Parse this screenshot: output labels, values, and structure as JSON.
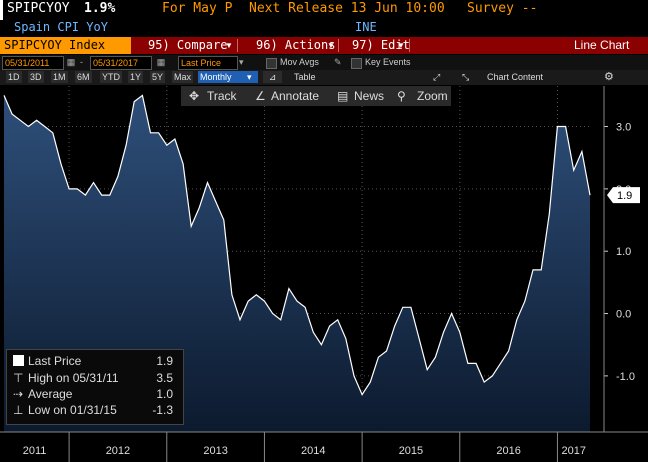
{
  "header": {
    "ticker": "SPIPCYOY",
    "last_value": "1.9%",
    "for_label": "For May P",
    "next_release": "Next Release 13 Jun 10:00",
    "survey": "Survey --",
    "name": "Spain CPI YoY",
    "source": "INE"
  },
  "command_bar": {
    "security": "SPIPCYOY Index",
    "compare": "95) Compare",
    "actions": "96) Actions",
    "edit": "97) Edit",
    "view": "Line Chart"
  },
  "toolbar": {
    "start_date": "05/31/2011",
    "end_date": "05/31/2017",
    "field": "Last Price",
    "mov_avgs": "Mov Avgs",
    "key_events": "Key Events",
    "chart_content": "Chart Content",
    "periods": [
      "1D",
      "3D",
      "1M",
      "6M",
      "YTD",
      "1Y",
      "5Y",
      "Max"
    ],
    "frequency": "Monthly",
    "table": "Table"
  },
  "tools": {
    "track": "Track",
    "annotate": "Annotate",
    "news": "News",
    "zoom": "Zoom"
  },
  "legend": {
    "last_label": "Last Price",
    "last_value": "1.9",
    "high_label": "High on 05/31/11",
    "high_value": "3.5",
    "avg_label": "Average",
    "avg_value": "1.0",
    "low_label": "Low on 01/31/15",
    "low_value": "-1.3"
  },
  "colors": {
    "line": "#ffffff",
    "fill_top": "#2e4f7a",
    "fill_bottom": "#0c1a2e",
    "header_value": "#ffd700",
    "header_label": "#ff9900",
    "command_bar": "#8b0000",
    "security_tab": "#ff9900",
    "frequency_active": "#1f5fb4"
  },
  "chart_data": {
    "type": "area",
    "title": "",
    "xlabel": "",
    "ylabel": "",
    "ylim": [
      -1.9,
      3.65
    ],
    "yticks": [
      3.0,
      2.0,
      1.0,
      0.0,
      -1.0
    ],
    "last_value_label": "1.9",
    "x_labels": [
      "2011",
      "2012",
      "2013",
      "2014",
      "2015",
      "2016",
      "2017"
    ],
    "x": [
      "2011-05",
      "2011-06",
      "2011-07",
      "2011-08",
      "2011-09",
      "2011-10",
      "2011-11",
      "2011-12",
      "2012-01",
      "2012-02",
      "2012-03",
      "2012-04",
      "2012-05",
      "2012-06",
      "2012-07",
      "2012-08",
      "2012-09",
      "2012-10",
      "2012-11",
      "2012-12",
      "2013-01",
      "2013-02",
      "2013-03",
      "2013-04",
      "2013-05",
      "2013-06",
      "2013-07",
      "2013-08",
      "2013-09",
      "2013-10",
      "2013-11",
      "2013-12",
      "2014-01",
      "2014-02",
      "2014-03",
      "2014-04",
      "2014-05",
      "2014-06",
      "2014-07",
      "2014-08",
      "2014-09",
      "2014-10",
      "2014-11",
      "2014-12",
      "2015-01",
      "2015-02",
      "2015-03",
      "2015-04",
      "2015-05",
      "2015-06",
      "2015-07",
      "2015-08",
      "2015-09",
      "2015-10",
      "2015-11",
      "2015-12",
      "2016-01",
      "2016-02",
      "2016-03",
      "2016-04",
      "2016-05",
      "2016-06",
      "2016-07",
      "2016-08",
      "2016-09",
      "2016-10",
      "2016-11",
      "2016-12",
      "2017-01",
      "2017-02",
      "2017-03",
      "2017-04",
      "2017-05"
    ],
    "series": [
      {
        "values": [
          3.5,
          3.2,
          3.1,
          3.0,
          3.1,
          3.0,
          2.9,
          2.4,
          2.0,
          2.0,
          1.9,
          2.1,
          1.9,
          1.9,
          2.2,
          2.7,
          3.4,
          3.5,
          2.9,
          2.9,
          2.7,
          2.8,
          2.4,
          1.4,
          1.7,
          2.1,
          1.8,
          1.5,
          0.3,
          -0.1,
          0.2,
          0.3,
          0.2,
          0.0,
          -0.1,
          0.4,
          0.2,
          0.1,
          -0.3,
          -0.5,
          -0.2,
          -0.1,
          -0.4,
          -1.0,
          -1.3,
          -1.1,
          -0.7,
          -0.6,
          -0.2,
          0.1,
          0.1,
          -0.4,
          -0.9,
          -0.7,
          -0.3,
          0.0,
          -0.3,
          -0.8,
          -0.8,
          -1.1,
          -1.0,
          -0.8,
          -0.6,
          -0.1,
          0.2,
          0.7,
          0.7,
          1.6,
          3.0,
          3.0,
          2.3,
          2.6,
          1.9
        ]
      }
    ]
  }
}
